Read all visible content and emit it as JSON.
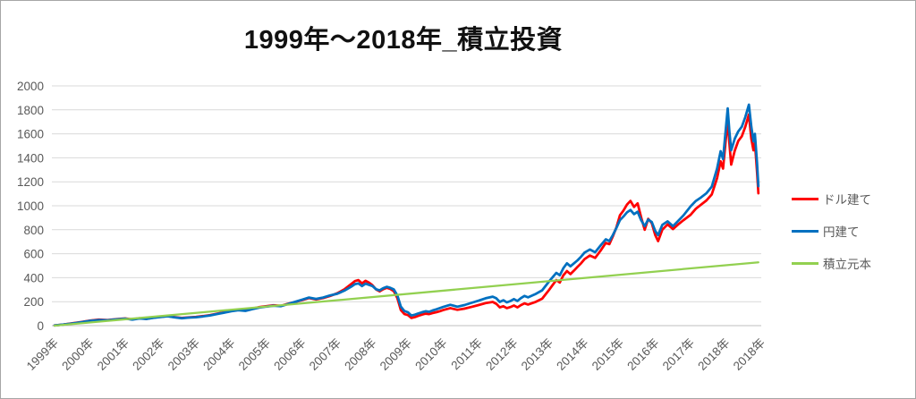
{
  "frame": {
    "background": "#FFFFFF",
    "border_color": "#A6A6A6"
  },
  "chart_data": {
    "type": "line",
    "title": "1999年～2018年_積立投資",
    "xlabel": "",
    "ylabel": "",
    "xlim": [
      1999,
      2019
    ],
    "ylim": [
      0,
      2000
    ],
    "y_ticks": [
      0,
      200,
      400,
      600,
      800,
      1000,
      1200,
      1400,
      1600,
      1800,
      2000
    ],
    "x_tick_labels": [
      "1999年",
      "2000年",
      "2001年",
      "2002年",
      "2003年",
      "2004年",
      "2005年",
      "2006年",
      "2007年",
      "2008年",
      "2009年",
      "2010年",
      "2011年",
      "2012年",
      "2013年",
      "2014年",
      "2015年",
      "2016年",
      "2017年",
      "2018年",
      "2018年"
    ],
    "x_tick_rotation_deg": -45,
    "grid": "horizontal-only",
    "legend_position": "right",
    "style": {
      "grid_color": "#D9D9D9",
      "axis_line_color": "#BFBFBF",
      "axis_text_color": "#595959",
      "title_color": "#111111"
    },
    "series": [
      {
        "key": "usd",
        "name": "ドル建て",
        "color": "#FF0000",
        "points": [
          [
            1999.0,
            2
          ],
          [
            1999.25,
            10
          ],
          [
            1999.5,
            20
          ],
          [
            1999.75,
            30
          ],
          [
            2000.0,
            42
          ],
          [
            2000.25,
            50
          ],
          [
            2000.5,
            46
          ],
          [
            2000.75,
            54
          ],
          [
            2001.0,
            60
          ],
          [
            2001.2,
            52
          ],
          [
            2001.4,
            62
          ],
          [
            2001.6,
            57
          ],
          [
            2001.8,
            67
          ],
          [
            2002.0,
            74
          ],
          [
            2002.2,
            80
          ],
          [
            2002.4,
            71
          ],
          [
            2002.6,
            64
          ],
          [
            2002.8,
            69
          ],
          [
            2003.0,
            73
          ],
          [
            2003.2,
            80
          ],
          [
            2003.4,
            88
          ],
          [
            2003.6,
            100
          ],
          [
            2003.8,
            112
          ],
          [
            2004.0,
            124
          ],
          [
            2004.2,
            132
          ],
          [
            2004.4,
            127
          ],
          [
            2004.6,
            142
          ],
          [
            2004.8,
            155
          ],
          [
            2005.0,
            163
          ],
          [
            2005.2,
            170
          ],
          [
            2005.4,
            165
          ],
          [
            2005.6,
            182
          ],
          [
            2005.8,
            196
          ],
          [
            2006.0,
            212
          ],
          [
            2006.2,
            230
          ],
          [
            2006.4,
            218
          ],
          [
            2006.6,
            230
          ],
          [
            2006.8,
            248
          ],
          [
            2007.0,
            270
          ],
          [
            2007.2,
            302
          ],
          [
            2007.4,
            348
          ],
          [
            2007.5,
            372
          ],
          [
            2007.6,
            380
          ],
          [
            2007.7,
            352
          ],
          [
            2007.8,
            374
          ],
          [
            2007.9,
            358
          ],
          [
            2008.0,
            336
          ],
          [
            2008.1,
            302
          ],
          [
            2008.2,
            286
          ],
          [
            2008.3,
            304
          ],
          [
            2008.4,
            316
          ],
          [
            2008.5,
            306
          ],
          [
            2008.6,
            288
          ],
          [
            2008.7,
            230
          ],
          [
            2008.8,
            130
          ],
          [
            2008.9,
            96
          ],
          [
            2009.0,
            88
          ],
          [
            2009.1,
            64
          ],
          [
            2009.2,
            72
          ],
          [
            2009.3,
            82
          ],
          [
            2009.4,
            92
          ],
          [
            2009.5,
            100
          ],
          [
            2009.6,
            96
          ],
          [
            2009.7,
            105
          ],
          [
            2009.8,
            112
          ],
          [
            2009.9,
            120
          ],
          [
            2010.0,
            130
          ],
          [
            2010.2,
            146
          ],
          [
            2010.4,
            132
          ],
          [
            2010.6,
            142
          ],
          [
            2010.8,
            156
          ],
          [
            2011.0,
            172
          ],
          [
            2011.2,
            188
          ],
          [
            2011.4,
            198
          ],
          [
            2011.5,
            182
          ],
          [
            2011.6,
            152
          ],
          [
            2011.7,
            162
          ],
          [
            2011.8,
            146
          ],
          [
            2011.9,
            155
          ],
          [
            2012.0,
            168
          ],
          [
            2012.1,
            152
          ],
          [
            2012.2,
            172
          ],
          [
            2012.3,
            186
          ],
          [
            2012.4,
            176
          ],
          [
            2012.6,
            196
          ],
          [
            2012.8,
            225
          ],
          [
            2013.0,
            300
          ],
          [
            2013.1,
            340
          ],
          [
            2013.2,
            380
          ],
          [
            2013.3,
            360
          ],
          [
            2013.4,
            420
          ],
          [
            2013.5,
            455
          ],
          [
            2013.6,
            430
          ],
          [
            2013.7,
            460
          ],
          [
            2013.8,
            490
          ],
          [
            2013.9,
            520
          ],
          [
            2014.0,
            555
          ],
          [
            2014.15,
            585
          ],
          [
            2014.3,
            565
          ],
          [
            2014.45,
            625
          ],
          [
            2014.6,
            690
          ],
          [
            2014.7,
            680
          ],
          [
            2014.8,
            745
          ],
          [
            2014.9,
            820
          ],
          [
            2015.0,
            920
          ],
          [
            2015.1,
            960
          ],
          [
            2015.2,
            1010
          ],
          [
            2015.3,
            1040
          ],
          [
            2015.4,
            990
          ],
          [
            2015.5,
            1020
          ],
          [
            2015.6,
            905
          ],
          [
            2015.7,
            800
          ],
          [
            2015.8,
            890
          ],
          [
            2015.9,
            855
          ],
          [
            2016.0,
            755
          ],
          [
            2016.08,
            705
          ],
          [
            2016.2,
            800
          ],
          [
            2016.35,
            845
          ],
          [
            2016.5,
            805
          ],
          [
            2016.65,
            845
          ],
          [
            2016.8,
            880
          ],
          [
            2017.0,
            925
          ],
          [
            2017.15,
            975
          ],
          [
            2017.3,
            1010
          ],
          [
            2017.45,
            1045
          ],
          [
            2017.6,
            1095
          ],
          [
            2017.75,
            1230
          ],
          [
            2017.85,
            1370
          ],
          [
            2017.92,
            1310
          ],
          [
            2018.0,
            1560
          ],
          [
            2018.05,
            1716
          ],
          [
            2018.1,
            1520
          ],
          [
            2018.15,
            1343
          ],
          [
            2018.25,
            1460
          ],
          [
            2018.35,
            1540
          ],
          [
            2018.45,
            1580
          ],
          [
            2018.55,
            1660
          ],
          [
            2018.65,
            1761
          ],
          [
            2018.72,
            1560
          ],
          [
            2018.78,
            1463
          ],
          [
            2018.82,
            1530
          ],
          [
            2018.88,
            1280
          ],
          [
            2018.92,
            1104
          ]
        ]
      },
      {
        "key": "jpy",
        "name": "円建て",
        "color": "#0070C0",
        "points": [
          [
            1999.0,
            2
          ],
          [
            1999.25,
            9
          ],
          [
            1999.5,
            18
          ],
          [
            1999.75,
            28
          ],
          [
            2000.0,
            40
          ],
          [
            2000.25,
            47
          ],
          [
            2000.5,
            45
          ],
          [
            2000.75,
            52
          ],
          [
            2001.0,
            58
          ],
          [
            2001.2,
            50
          ],
          [
            2001.4,
            60
          ],
          [
            2001.6,
            56
          ],
          [
            2001.8,
            65
          ],
          [
            2002.0,
            72
          ],
          [
            2002.2,
            78
          ],
          [
            2002.4,
            69
          ],
          [
            2002.6,
            62
          ],
          [
            2002.8,
            67
          ],
          [
            2003.0,
            70
          ],
          [
            2003.2,
            77
          ],
          [
            2003.4,
            85
          ],
          [
            2003.6,
            97
          ],
          [
            2003.8,
            108
          ],
          [
            2004.0,
            120
          ],
          [
            2004.2,
            128
          ],
          [
            2004.4,
            123
          ],
          [
            2004.6,
            138
          ],
          [
            2004.8,
            151
          ],
          [
            2005.0,
            159
          ],
          [
            2005.2,
            166
          ],
          [
            2005.4,
            162
          ],
          [
            2005.6,
            180
          ],
          [
            2005.8,
            198
          ],
          [
            2006.0,
            216
          ],
          [
            2006.2,
            234
          ],
          [
            2006.4,
            223
          ],
          [
            2006.6,
            234
          ],
          [
            2006.8,
            252
          ],
          [
            2007.0,
            266
          ],
          [
            2007.2,
            292
          ],
          [
            2007.4,
            326
          ],
          [
            2007.5,
            346
          ],
          [
            2007.6,
            352
          ],
          [
            2007.7,
            330
          ],
          [
            2007.8,
            350
          ],
          [
            2007.9,
            340
          ],
          [
            2008.0,
            330
          ],
          [
            2008.1,
            304
          ],
          [
            2008.2,
            294
          ],
          [
            2008.3,
            312
          ],
          [
            2008.4,
            324
          ],
          [
            2008.5,
            316
          ],
          [
            2008.6,
            302
          ],
          [
            2008.7,
            252
          ],
          [
            2008.8,
            158
          ],
          [
            2008.9,
            122
          ],
          [
            2009.0,
            112
          ],
          [
            2009.1,
            84
          ],
          [
            2009.2,
            92
          ],
          [
            2009.3,
            102
          ],
          [
            2009.4,
            112
          ],
          [
            2009.5,
            120
          ],
          [
            2009.6,
            116
          ],
          [
            2009.7,
            127
          ],
          [
            2009.8,
            136
          ],
          [
            2009.9,
            146
          ],
          [
            2010.0,
            156
          ],
          [
            2010.2,
            174
          ],
          [
            2010.4,
            158
          ],
          [
            2010.6,
            172
          ],
          [
            2010.8,
            190
          ],
          [
            2011.0,
            208
          ],
          [
            2011.2,
            228
          ],
          [
            2011.4,
            242
          ],
          [
            2011.5,
            228
          ],
          [
            2011.6,
            198
          ],
          [
            2011.7,
            212
          ],
          [
            2011.8,
            194
          ],
          [
            2011.9,
            205
          ],
          [
            2012.0,
            222
          ],
          [
            2012.1,
            206
          ],
          [
            2012.2,
            230
          ],
          [
            2012.3,
            248
          ],
          [
            2012.4,
            236
          ],
          [
            2012.6,
            262
          ],
          [
            2012.8,
            295
          ],
          [
            2013.0,
            370
          ],
          [
            2013.1,
            405
          ],
          [
            2013.2,
            440
          ],
          [
            2013.3,
            420
          ],
          [
            2013.4,
            480
          ],
          [
            2013.5,
            520
          ],
          [
            2013.6,
            495
          ],
          [
            2013.7,
            520
          ],
          [
            2013.8,
            545
          ],
          [
            2013.9,
            575
          ],
          [
            2014.0,
            610
          ],
          [
            2014.15,
            635
          ],
          [
            2014.3,
            612
          ],
          [
            2014.45,
            668
          ],
          [
            2014.6,
            720
          ],
          [
            2014.7,
            705
          ],
          [
            2014.8,
            755
          ],
          [
            2014.9,
            815
          ],
          [
            2015.0,
            880
          ],
          [
            2015.1,
            910
          ],
          [
            2015.2,
            945
          ],
          [
            2015.3,
            965
          ],
          [
            2015.4,
            930
          ],
          [
            2015.5,
            950
          ],
          [
            2015.6,
            880
          ],
          [
            2015.7,
            830
          ],
          [
            2015.8,
            885
          ],
          [
            2015.9,
            865
          ],
          [
            2016.0,
            790
          ],
          [
            2016.08,
            755
          ],
          [
            2016.2,
            840
          ],
          [
            2016.35,
            870
          ],
          [
            2016.5,
            830
          ],
          [
            2016.65,
            875
          ],
          [
            2016.8,
            920
          ],
          [
            2017.0,
            995
          ],
          [
            2017.15,
            1040
          ],
          [
            2017.3,
            1070
          ],
          [
            2017.45,
            1105
          ],
          [
            2017.6,
            1160
          ],
          [
            2017.75,
            1310
          ],
          [
            2017.85,
            1455
          ],
          [
            2017.92,
            1390
          ],
          [
            2018.0,
            1650
          ],
          [
            2018.05,
            1813
          ],
          [
            2018.1,
            1620
          ],
          [
            2018.15,
            1463
          ],
          [
            2018.25,
            1560
          ],
          [
            2018.35,
            1620
          ],
          [
            2018.45,
            1660
          ],
          [
            2018.55,
            1740
          ],
          [
            2018.65,
            1843
          ],
          [
            2018.72,
            1660
          ],
          [
            2018.78,
            1537
          ],
          [
            2018.82,
            1600
          ],
          [
            2018.88,
            1360
          ],
          [
            2018.92,
            1164
          ]
        ]
      },
      {
        "key": "principal",
        "name": "積立元本",
        "color": "#92D050",
        "points": [
          [
            1999.0,
            0
          ],
          [
            2018.92,
            528
          ]
        ]
      }
    ]
  }
}
